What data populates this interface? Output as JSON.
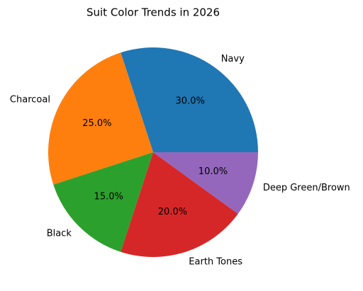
{
  "chart_data": {
    "type": "pie",
    "title": "Suit Color Trends in 2026",
    "categories": [
      "Navy",
      "Charcoal",
      "Black",
      "Earth Tones",
      "Deep Green/Brown"
    ],
    "values": [
      30,
      25,
      15,
      20,
      10
    ],
    "value_labels": [
      "30.0%",
      "25.0%",
      "15.0%",
      "20.0%",
      "10.0%"
    ],
    "colors": [
      "#1f77b4",
      "#ff7f0e",
      "#2ca02c",
      "#d62728",
      "#9467bd"
    ]
  }
}
